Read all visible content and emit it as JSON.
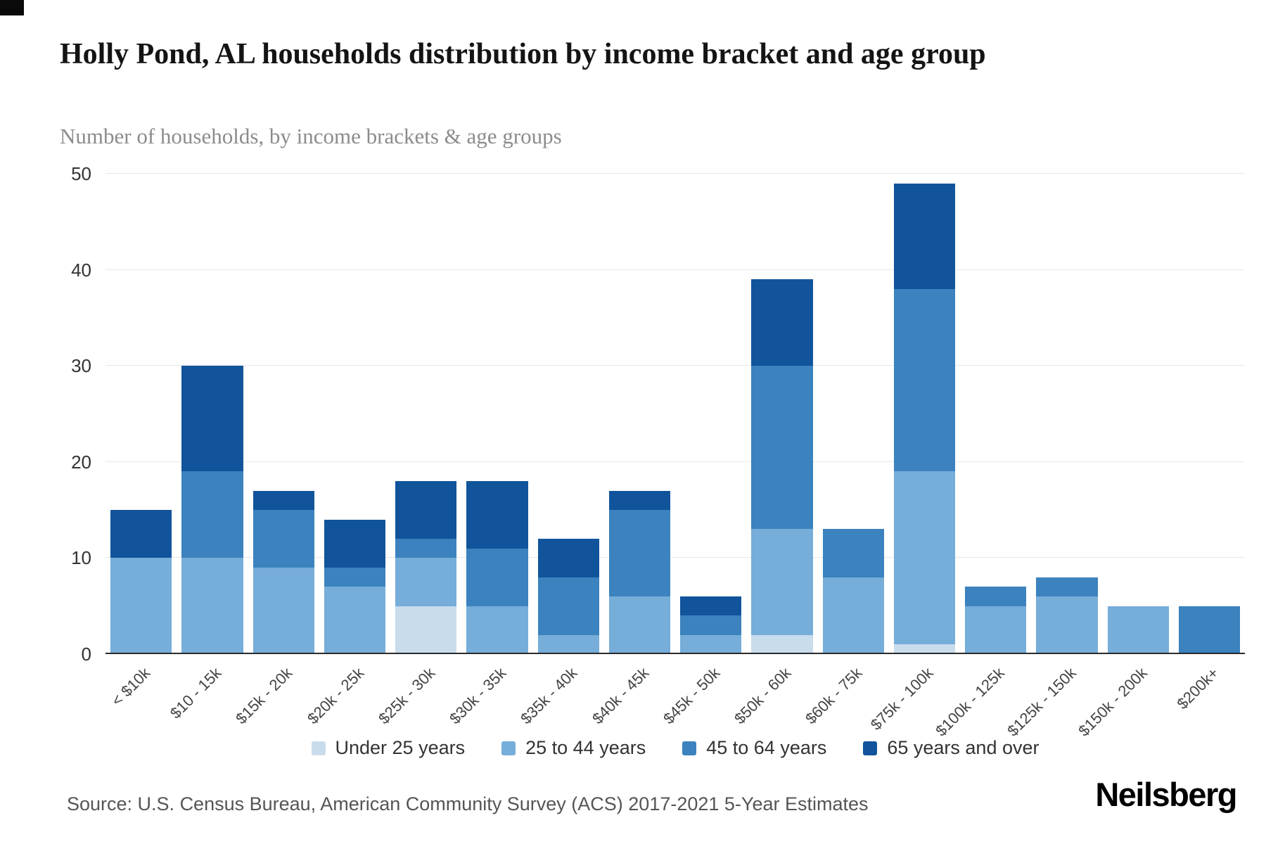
{
  "chart_data": {
    "type": "bar",
    "stacked": true,
    "title": "Holly Pond, AL households distribution by income bracket and age group",
    "subtitle": "Number of households, by income brackets & age groups",
    "categories": [
      "< $10k",
      "$10 - 15k",
      "$15k - 20k",
      "$20k - 25k",
      "$25k - 30k",
      "$30k - 35k",
      "$35k - 40k",
      "$40k - 45k",
      "$45k - 50k",
      "$50k - 60k",
      "$60k - 75k",
      "$75k - 100k",
      "$100k - 125k",
      "$125k - 150k",
      "$150k - 200k",
      "$200k+"
    ],
    "series": [
      {
        "name": "Under 25 years",
        "color": "#c9dcec",
        "values": [
          0,
          0,
          0,
          0,
          5,
          0,
          0,
          0,
          0,
          2,
          0,
          1,
          0,
          0,
          0,
          0
        ]
      },
      {
        "name": "25 to 44 years",
        "color": "#76add9",
        "values": [
          10,
          10,
          9,
          7,
          5,
          5,
          2,
          6,
          2,
          11,
          8,
          18,
          5,
          6,
          5,
          0
        ]
      },
      {
        "name": "45 to 64 years",
        "color": "#3b82be",
        "values": [
          0,
          9,
          6,
          2,
          2,
          6,
          6,
          9,
          2,
          17,
          5,
          19,
          2,
          2,
          0,
          5
        ]
      },
      {
        "name": "65 years and over",
        "color": "#11549b",
        "values": [
          5,
          11,
          2,
          5,
          6,
          7,
          4,
          2,
          2,
          9,
          0,
          11,
          0,
          0,
          0,
          0
        ]
      }
    ],
    "totals": [
      15,
      30,
      17,
      14,
      18,
      18,
      12,
      17,
      6,
      39,
      13,
      49,
      7,
      8,
      5,
      5
    ],
    "xlabel": "",
    "ylabel": "",
    "ylim": [
      0,
      50
    ],
    "yticks": [
      0,
      10,
      20,
      30,
      40,
      50
    ],
    "grid": "horizontal",
    "legend_position": "bottom"
  },
  "source": "Source: U.S. Census Bureau, American Community Survey (ACS) 2017-2021 5-Year Estimates",
  "logo": "Neilsberg"
}
